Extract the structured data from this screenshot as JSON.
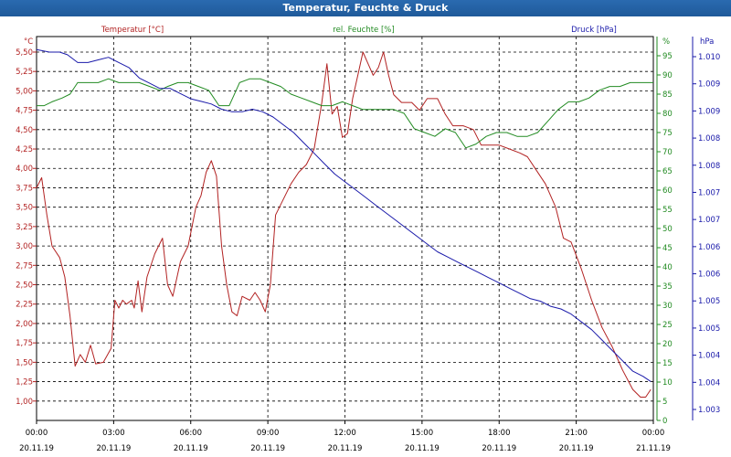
{
  "window": {
    "title": "Temperatur, Feuchte & Druck"
  },
  "chart_data": {
    "type": "line",
    "title": "Temperatur, Feuchte & Druck",
    "grid": true,
    "legend_placement": "top",
    "colors": {
      "temperature": "#b22222",
      "humidity": "#228b22",
      "pressure": "#1a1aaa"
    },
    "axes": {
      "left": {
        "label": "Temperatur [°C]",
        "unit": "°C",
        "range": [
          0.75,
          5.7
        ],
        "ticks": [
          "1,00",
          "1,25",
          "1,50",
          "1,75",
          "2,00",
          "2,25",
          "2,50",
          "2,75",
          "3,00",
          "3,25",
          "3,50",
          "3,75",
          "4,00",
          "4,25",
          "4,50",
          "4,75",
          "5,00",
          "5,25",
          "5,50"
        ]
      },
      "green": {
        "label": "rel. Feuchte [%]",
        "unit": "%",
        "range": [
          0,
          100
        ],
        "ticks": [
          "0",
          "5",
          "10",
          "15",
          "20",
          "25",
          "30",
          "35",
          "40",
          "45",
          "50",
          "55",
          "60",
          "65",
          "70",
          "75",
          "80",
          "85",
          "90",
          "95"
        ]
      },
      "right": {
        "label": "Druck [hPa]",
        "unit": "hPa",
        "range": [
          1002.8,
          1010.2
        ],
        "ticks": [
          "1.003",
          "1.004",
          "1.004",
          "1.005",
          "1.005",
          "1.006",
          "1.006",
          "1.007",
          "1.007",
          "1.008",
          "1.008",
          "1.009",
          "1.009",
          "1.010"
        ]
      }
    },
    "x_ticks": [
      {
        "time": "00:00",
        "date": "20.11.19"
      },
      {
        "time": "03:00",
        "date": "20.11.19"
      },
      {
        "time": "06:00",
        "date": "20.11.19"
      },
      {
        "time": "09:00",
        "date": "20.11.19"
      },
      {
        "time": "12:00",
        "date": "20.11.19"
      },
      {
        "time": "15:00",
        "date": "20.11.19"
      },
      {
        "time": "18:00",
        "date": "20.11.19"
      },
      {
        "time": "21:00",
        "date": "20.11.19"
      },
      {
        "time": "00:00",
        "date": "21.11.19"
      }
    ],
    "x_hours_range": [
      0,
      24
    ],
    "series": [
      {
        "name": "Temperatur [°C]",
        "axis": "left",
        "color": "#b22222",
        "points": [
          [
            0,
            3.75
          ],
          [
            0.2,
            3.88
          ],
          [
            0.4,
            3.4
          ],
          [
            0.6,
            3.0
          ],
          [
            0.9,
            2.85
          ],
          [
            1.1,
            2.6
          ],
          [
            1.3,
            2.1
          ],
          [
            1.5,
            1.45
          ],
          [
            1.7,
            1.6
          ],
          [
            1.9,
            1.5
          ],
          [
            2.1,
            1.72
          ],
          [
            2.3,
            1.48
          ],
          [
            2.6,
            1.5
          ],
          [
            2.9,
            1.68
          ],
          [
            3.05,
            2.3
          ],
          [
            3.2,
            2.2
          ],
          [
            3.35,
            2.3
          ],
          [
            3.5,
            2.25
          ],
          [
            3.7,
            2.3
          ],
          [
            3.8,
            2.2
          ],
          [
            3.95,
            2.55
          ],
          [
            4.1,
            2.15
          ],
          [
            4.3,
            2.6
          ],
          [
            4.6,
            2.9
          ],
          [
            4.9,
            3.1
          ],
          [
            5.1,
            2.5
          ],
          [
            5.3,
            2.35
          ],
          [
            5.6,
            2.8
          ],
          [
            5.9,
            3.0
          ],
          [
            6.2,
            3.5
          ],
          [
            6.4,
            3.65
          ],
          [
            6.6,
            3.95
          ],
          [
            6.8,
            4.1
          ],
          [
            7.0,
            3.9
          ],
          [
            7.2,
            3.0
          ],
          [
            7.4,
            2.5
          ],
          [
            7.6,
            2.15
          ],
          [
            7.8,
            2.1
          ],
          [
            8.0,
            2.35
          ],
          [
            8.3,
            2.3
          ],
          [
            8.5,
            2.4
          ],
          [
            8.7,
            2.3
          ],
          [
            8.9,
            2.15
          ],
          [
            9.1,
            2.5
          ],
          [
            9.3,
            3.4
          ],
          [
            9.6,
            3.6
          ],
          [
            9.9,
            3.8
          ],
          [
            10.2,
            3.95
          ],
          [
            10.5,
            4.05
          ],
          [
            10.8,
            4.25
          ],
          [
            11.1,
            4.85
          ],
          [
            11.3,
            5.35
          ],
          [
            11.5,
            4.7
          ],
          [
            11.7,
            4.8
          ],
          [
            11.9,
            4.4
          ],
          [
            12.1,
            4.45
          ],
          [
            12.3,
            4.9
          ],
          [
            12.5,
            5.2
          ],
          [
            12.7,
            5.5
          ],
          [
            12.9,
            5.35
          ],
          [
            13.1,
            5.2
          ],
          [
            13.3,
            5.3
          ],
          [
            13.5,
            5.5
          ],
          [
            13.7,
            5.2
          ],
          [
            13.9,
            4.95
          ],
          [
            14.2,
            4.85
          ],
          [
            14.6,
            4.85
          ],
          [
            14.9,
            4.75
          ],
          [
            15.2,
            4.9
          ],
          [
            15.6,
            4.9
          ],
          [
            15.9,
            4.7
          ],
          [
            16.2,
            4.55
          ],
          [
            16.6,
            4.55
          ],
          [
            17.0,
            4.5
          ],
          [
            17.3,
            4.3
          ],
          [
            17.7,
            4.3
          ],
          [
            18.0,
            4.3
          ],
          [
            18.4,
            4.25
          ],
          [
            18.8,
            4.2
          ],
          [
            19.1,
            4.15
          ],
          [
            19.4,
            4.0
          ],
          [
            19.8,
            3.8
          ],
          [
            20.2,
            3.5
          ],
          [
            20.5,
            3.1
          ],
          [
            20.8,
            3.05
          ],
          [
            21.2,
            2.7
          ],
          [
            21.6,
            2.3
          ],
          [
            22.0,
            1.95
          ],
          [
            22.4,
            1.7
          ],
          [
            22.8,
            1.4
          ],
          [
            23.2,
            1.15
          ],
          [
            23.5,
            1.05
          ],
          [
            23.7,
            1.05
          ],
          [
            23.9,
            1.15
          ]
        ]
      },
      {
        "name": "rel. Feuchte [%]",
        "axis": "green",
        "color": "#228b22",
        "points": [
          [
            0,
            82
          ],
          [
            0.3,
            82
          ],
          [
            0.6,
            83
          ],
          [
            1.0,
            84
          ],
          [
            1.3,
            85
          ],
          [
            1.6,
            88
          ],
          [
            2.0,
            88
          ],
          [
            2.4,
            88
          ],
          [
            2.8,
            89
          ],
          [
            3.2,
            88
          ],
          [
            3.6,
            88
          ],
          [
            4.0,
            88
          ],
          [
            4.4,
            87
          ],
          [
            4.8,
            86
          ],
          [
            5.1,
            87
          ],
          [
            5.5,
            88
          ],
          [
            5.9,
            88
          ],
          [
            6.3,
            87
          ],
          [
            6.7,
            86
          ],
          [
            7.1,
            82
          ],
          [
            7.5,
            82
          ],
          [
            7.9,
            88
          ],
          [
            8.3,
            89
          ],
          [
            8.7,
            89
          ],
          [
            9.1,
            88
          ],
          [
            9.5,
            87
          ],
          [
            9.9,
            85
          ],
          [
            10.3,
            84
          ],
          [
            10.7,
            83
          ],
          [
            11.1,
            82
          ],
          [
            11.5,
            82
          ],
          [
            11.9,
            83
          ],
          [
            12.3,
            82
          ],
          [
            12.7,
            81
          ],
          [
            13.1,
            81
          ],
          [
            13.5,
            81
          ],
          [
            13.9,
            81
          ],
          [
            14.3,
            80
          ],
          [
            14.7,
            76
          ],
          [
            15.1,
            75
          ],
          [
            15.5,
            74
          ],
          [
            15.9,
            76
          ],
          [
            16.3,
            75
          ],
          [
            16.7,
            71
          ],
          [
            17.1,
            72
          ],
          [
            17.5,
            74
          ],
          [
            17.9,
            75
          ],
          [
            18.3,
            75
          ],
          [
            18.7,
            74
          ],
          [
            19.1,
            74
          ],
          [
            19.5,
            75
          ],
          [
            19.9,
            78
          ],
          [
            20.3,
            81
          ],
          [
            20.7,
            83
          ],
          [
            21.1,
            83
          ],
          [
            21.5,
            84
          ],
          [
            21.9,
            86
          ],
          [
            22.3,
            87
          ],
          [
            22.7,
            87
          ],
          [
            23.1,
            88
          ],
          [
            23.5,
            88
          ],
          [
            24.0,
            88
          ]
        ]
      },
      {
        "name": "Druck [hPa]",
        "axis": "right",
        "color": "#1a1aaa",
        "points": [
          [
            0,
            1009.95
          ],
          [
            0.5,
            1009.9
          ],
          [
            0.9,
            1009.9
          ],
          [
            1.2,
            1009.85
          ],
          [
            1.6,
            1009.7
          ],
          [
            2.0,
            1009.7
          ],
          [
            2.4,
            1009.75
          ],
          [
            2.8,
            1009.8
          ],
          [
            3.2,
            1009.7
          ],
          [
            3.6,
            1009.6
          ],
          [
            4.0,
            1009.4
          ],
          [
            4.4,
            1009.3
          ],
          [
            4.8,
            1009.2
          ],
          [
            5.2,
            1009.2
          ],
          [
            5.6,
            1009.1
          ],
          [
            6.0,
            1009.0
          ],
          [
            6.4,
            1008.95
          ],
          [
            6.8,
            1008.9
          ],
          [
            7.2,
            1008.8
          ],
          [
            7.6,
            1008.75
          ],
          [
            8.0,
            1008.75
          ],
          [
            8.4,
            1008.8
          ],
          [
            8.8,
            1008.75
          ],
          [
            9.2,
            1008.65
          ],
          [
            9.6,
            1008.5
          ],
          [
            10.0,
            1008.35
          ],
          [
            10.4,
            1008.15
          ],
          [
            10.8,
            1007.95
          ],
          [
            11.2,
            1007.75
          ],
          [
            11.6,
            1007.55
          ],
          [
            12.0,
            1007.4
          ],
          [
            12.4,
            1007.25
          ],
          [
            12.8,
            1007.1
          ],
          [
            13.2,
            1006.95
          ],
          [
            13.6,
            1006.8
          ],
          [
            14.0,
            1006.65
          ],
          [
            14.4,
            1006.5
          ],
          [
            14.8,
            1006.35
          ],
          [
            15.2,
            1006.2
          ],
          [
            15.6,
            1006.05
          ],
          [
            16.0,
            1005.95
          ],
          [
            16.4,
            1005.85
          ],
          [
            16.8,
            1005.75
          ],
          [
            17.2,
            1005.65
          ],
          [
            17.6,
            1005.55
          ],
          [
            18.0,
            1005.45
          ],
          [
            18.4,
            1005.35
          ],
          [
            18.8,
            1005.25
          ],
          [
            19.2,
            1005.15
          ],
          [
            19.6,
            1005.1
          ],
          [
            20.0,
            1005.0
          ],
          [
            20.4,
            1004.95
          ],
          [
            20.8,
            1004.85
          ],
          [
            21.2,
            1004.7
          ],
          [
            21.6,
            1004.55
          ],
          [
            22.0,
            1004.35
          ],
          [
            22.4,
            1004.15
          ],
          [
            22.8,
            1003.95
          ],
          [
            23.2,
            1003.75
          ],
          [
            23.6,
            1003.65
          ],
          [
            23.9,
            1003.55
          ]
        ]
      }
    ]
  }
}
